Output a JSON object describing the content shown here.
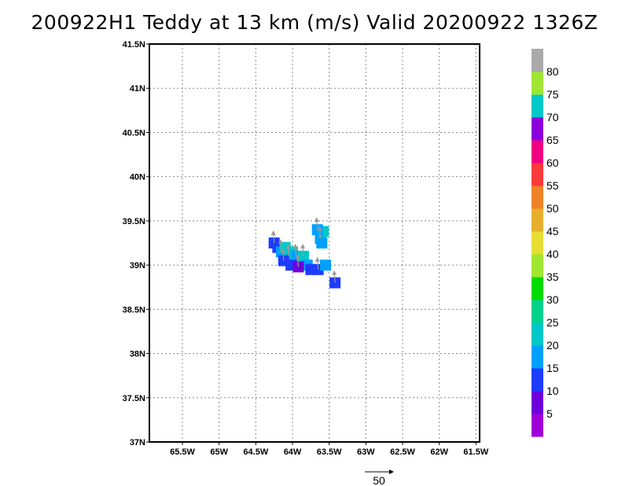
{
  "title": "200922H1 Teddy at 13 km (m/s) Valid 20200922 1326Z",
  "chart_data": {
    "type": "heatmap",
    "title": "200922H1 Teddy at 13 km (m/s) Valid 20200922 1326Z",
    "xlabel": "",
    "ylabel": "",
    "xlim": [
      -65.95,
      -61.45
    ],
    "ylim": [
      37.0,
      41.5
    ],
    "grid": true,
    "x_ticks": [
      {
        "value": -65.5,
        "label": "65.5W"
      },
      {
        "value": -65.0,
        "label": "65W"
      },
      {
        "value": -64.5,
        "label": "64.5W"
      },
      {
        "value": -64.0,
        "label": "64W"
      },
      {
        "value": -63.5,
        "label": "63.5W"
      },
      {
        "value": -63.0,
        "label": "63W"
      },
      {
        "value": -62.5,
        "label": "62.5W"
      },
      {
        "value": -62.0,
        "label": "62W"
      },
      {
        "value": -61.5,
        "label": "61.5W"
      }
    ],
    "y_ticks": [
      {
        "value": 37.0,
        "label": "37N"
      },
      {
        "value": 37.5,
        "label": "37.5N"
      },
      {
        "value": 38.0,
        "label": "38N"
      },
      {
        "value": 38.5,
        "label": "38.5N"
      },
      {
        "value": 39.0,
        "label": "39N"
      },
      {
        "value": 39.5,
        "label": "39.5N"
      },
      {
        "value": 40.0,
        "label": "40N"
      },
      {
        "value": 40.5,
        "label": "40.5N"
      },
      {
        "value": 41.0,
        "label": "41N"
      },
      {
        "value": 41.5,
        "label": "41.5N"
      }
    ],
    "colorbar": {
      "colors": [
        "#a000d8",
        "#6e00dc",
        "#1e3cff",
        "#00a0ff",
        "#00c8c8",
        "#00d28c",
        "#00dc00",
        "#a0e632",
        "#e6dc32",
        "#e6af2d",
        "#f08228",
        "#fa3c3c",
        "#f00082",
        "#8c00dc",
        "#00c8c8",
        "#a0e632",
        "#aaaaaa"
      ],
      "labels": [
        "5",
        "10",
        "15",
        "20",
        "25",
        "30",
        "35",
        "40",
        "45",
        "50",
        "55",
        "60",
        "65",
        "70",
        "75",
        "80"
      ]
    },
    "wind_field": [
      {
        "lon": -64.25,
        "lat": 39.25,
        "speed": 10
      },
      {
        "lon": -64.2,
        "lat": 39.2,
        "speed": 10
      },
      {
        "lon": -64.15,
        "lat": 39.15,
        "speed": 15
      },
      {
        "lon": -64.1,
        "lat": 39.2,
        "speed": 20
      },
      {
        "lon": -64.05,
        "lat": 39.1,
        "speed": 20
      },
      {
        "lon": -64.0,
        "lat": 39.15,
        "speed": 20
      },
      {
        "lon": -63.95,
        "lat": 39.1,
        "speed": 15
      },
      {
        "lon": -63.9,
        "lat": 39.05,
        "speed": 15
      },
      {
        "lon": -63.85,
        "lat": 39.1,
        "speed": 20
      },
      {
        "lon": -63.8,
        "lat": 39.0,
        "speed": 15
      },
      {
        "lon": -64.12,
        "lat": 39.05,
        "speed": 10
      },
      {
        "lon": -64.02,
        "lat": 39.0,
        "speed": 10
      },
      {
        "lon": -63.92,
        "lat": 38.98,
        "speed": 5
      },
      {
        "lon": -63.75,
        "lat": 38.95,
        "speed": 10
      },
      {
        "lon": -63.65,
        "lat": 38.95,
        "speed": 10
      },
      {
        "lon": -63.55,
        "lat": 39.0,
        "speed": 15
      },
      {
        "lon": -63.62,
        "lat": 39.3,
        "speed": 15
      },
      {
        "lon": -63.58,
        "lat": 39.38,
        "speed": 20
      },
      {
        "lon": -63.66,
        "lat": 39.4,
        "speed": 15
      },
      {
        "lon": -63.6,
        "lat": 39.25,
        "speed": 15
      },
      {
        "lon": -63.42,
        "lat": 38.8,
        "speed": 10
      }
    ],
    "vector_reference": {
      "value": 50,
      "label": "50"
    }
  }
}
